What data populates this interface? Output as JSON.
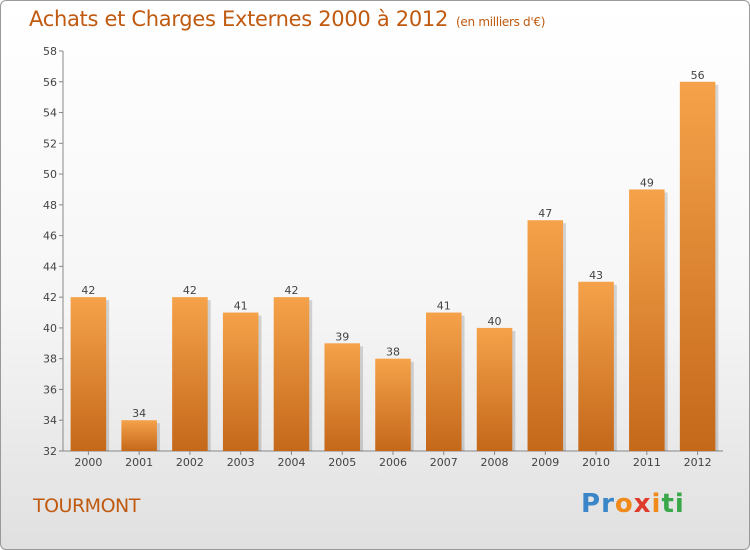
{
  "header": {
    "title": "Achats et Charges Externes 2000 à 2012",
    "unit": "(en milliers d'€)"
  },
  "footer": {
    "commune": "TOURMONT"
  },
  "brand": {
    "letters": [
      "P",
      "r",
      "o",
      "x",
      "i",
      "t",
      "i"
    ],
    "colors": [
      "#3a86c8",
      "#3a86c8",
      "#f08a1a",
      "#e03a2a",
      "#f08a1a",
      "#3aa84a",
      "#3aa84a"
    ]
  },
  "colors": {
    "bar_light": "#f5a24a",
    "bar_dark": "#c4681a",
    "title": "#c05a10"
  },
  "chart_data": {
    "type": "bar",
    "categories": [
      "2000",
      "2001",
      "2002",
      "2003",
      "2004",
      "2005",
      "2006",
      "2007",
      "2008",
      "2009",
      "2010",
      "2011",
      "2012"
    ],
    "values": [
      42,
      34,
      42,
      41,
      42,
      39,
      38,
      41,
      40,
      47,
      43,
      49,
      56
    ],
    "title": "Achats et Charges Externes 2000 à 2012",
    "xlabel": "",
    "ylabel": "",
    "ylim": [
      32,
      58
    ],
    "yticks": [
      32,
      34,
      36,
      38,
      40,
      42,
      44,
      46,
      48,
      50,
      52,
      54,
      56,
      58
    ],
    "grid": false,
    "data_labels": true
  }
}
